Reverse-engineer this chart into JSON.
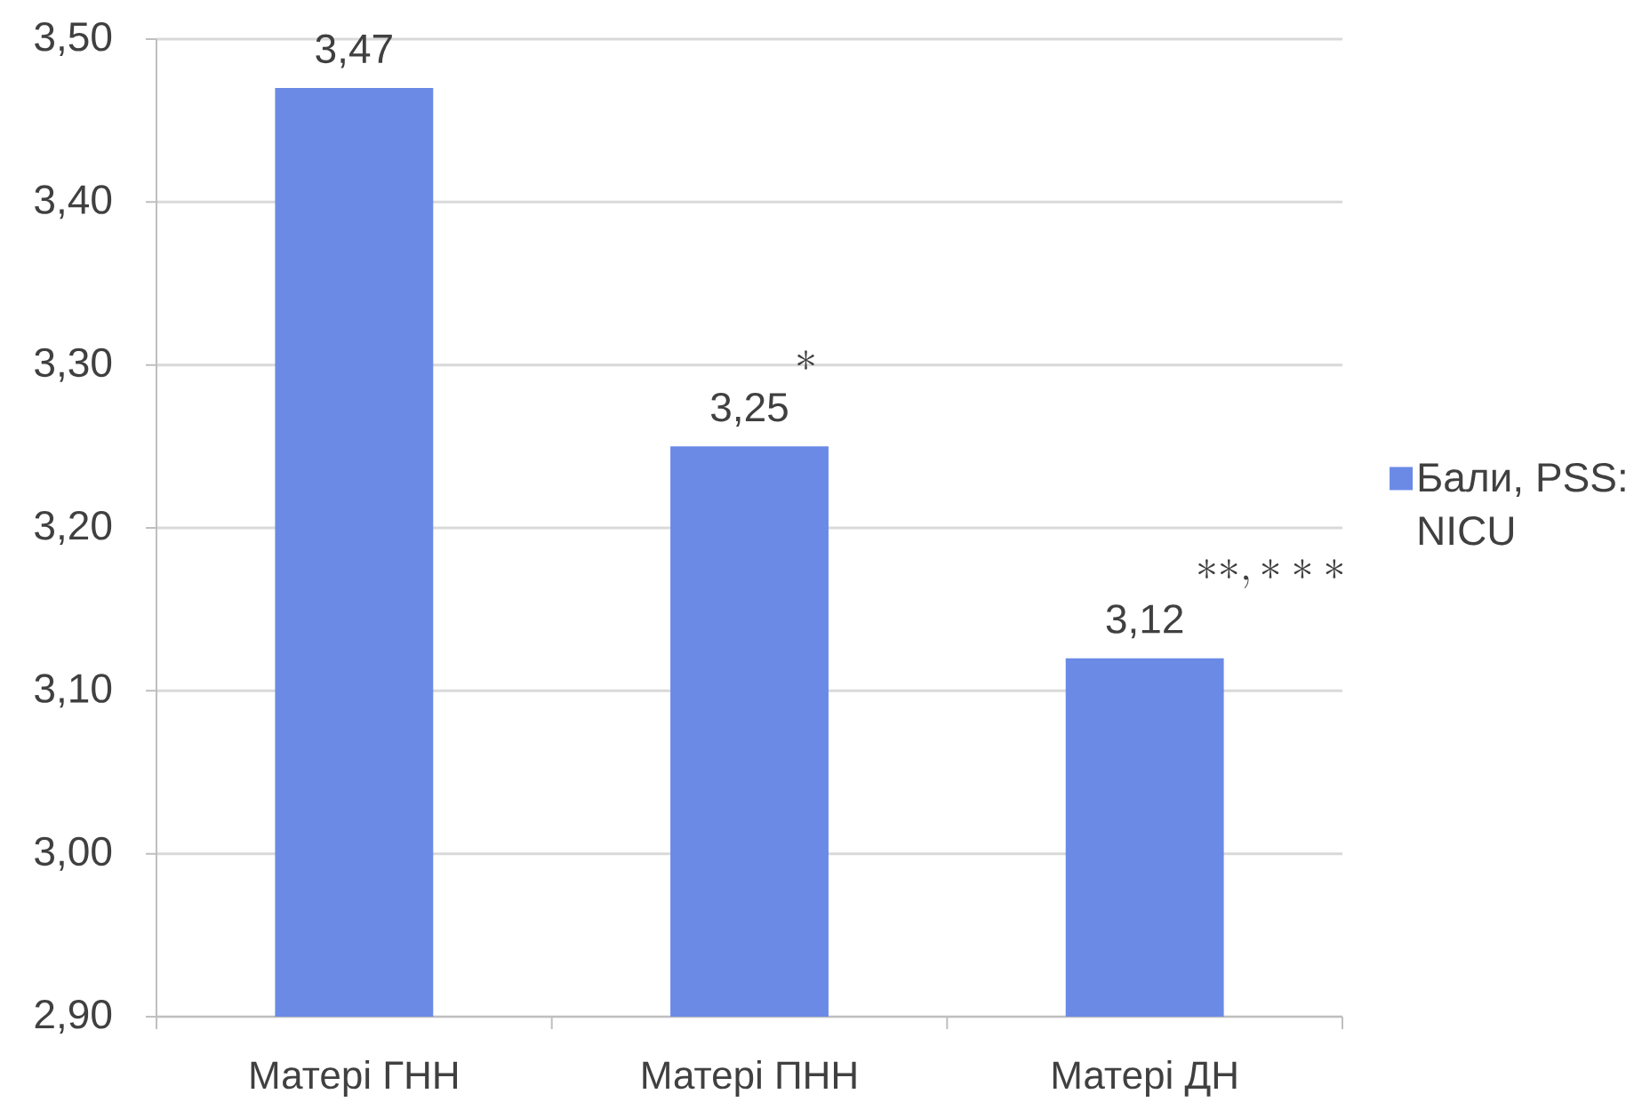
{
  "chart_data": {
    "type": "bar",
    "categories": [
      "Матері ГНН",
      "Матері ПНН",
      "Матері ДН"
    ],
    "series": [
      {
        "name": "Бали, PSS: NICU",
        "color": "#6a8ae6",
        "values": [
          3.47,
          3.25,
          3.12
        ],
        "value_labels": [
          "3,47",
          "3,25",
          "3,12"
        ]
      }
    ],
    "ylim": [
      2.9,
      3.5
    ],
    "yticks": [
      {
        "value": 2.9,
        "label": "2,90"
      },
      {
        "value": 3.0,
        "label": "3,00"
      },
      {
        "value": 3.1,
        "label": "3,10"
      },
      {
        "value": 3.2,
        "label": "3,20"
      },
      {
        "value": 3.3,
        "label": "3,30"
      },
      {
        "value": 3.4,
        "label": "3,40"
      },
      {
        "value": 3.5,
        "label": "3,50"
      }
    ],
    "grid": "y",
    "legend": "right",
    "annotations": [
      "*",
      "**, ***"
    ]
  }
}
